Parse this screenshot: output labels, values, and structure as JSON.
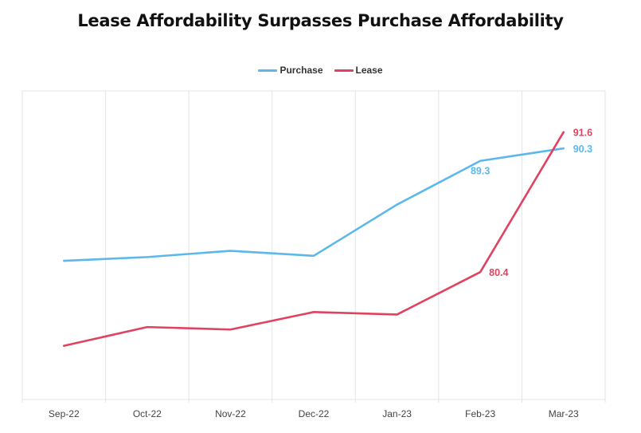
{
  "chart_data": {
    "type": "line",
    "title": "Lease Affordability Surpasses Purchase Affordability",
    "xlabel": "",
    "ylabel": "",
    "categories": [
      "Sep-22",
      "Oct-22",
      "Nov-22",
      "Dec-22",
      "Jan-23",
      "Feb-23",
      "Mar-23"
    ],
    "series": [
      {
        "name": "Purchase",
        "color": "#5BB8EC",
        "values": [
          81.3,
          81.6,
          82.1,
          81.7,
          85.8,
          89.3,
          90.3
        ],
        "data_labels": [
          null,
          null,
          null,
          null,
          null,
          "89.3",
          "90.3"
        ]
      },
      {
        "name": "Lease",
        "color": "#E0435F",
        "values": [
          74.5,
          76.0,
          75.8,
          77.2,
          77.0,
          80.4,
          91.6
        ],
        "data_labels": [
          null,
          null,
          null,
          null,
          null,
          "80.4",
          "91.6"
        ]
      }
    ],
    "ylim": [
      70.2,
      94.9
    ],
    "y_ticks_shown": false,
    "grid": "vertical",
    "legend_position": "top-center"
  }
}
